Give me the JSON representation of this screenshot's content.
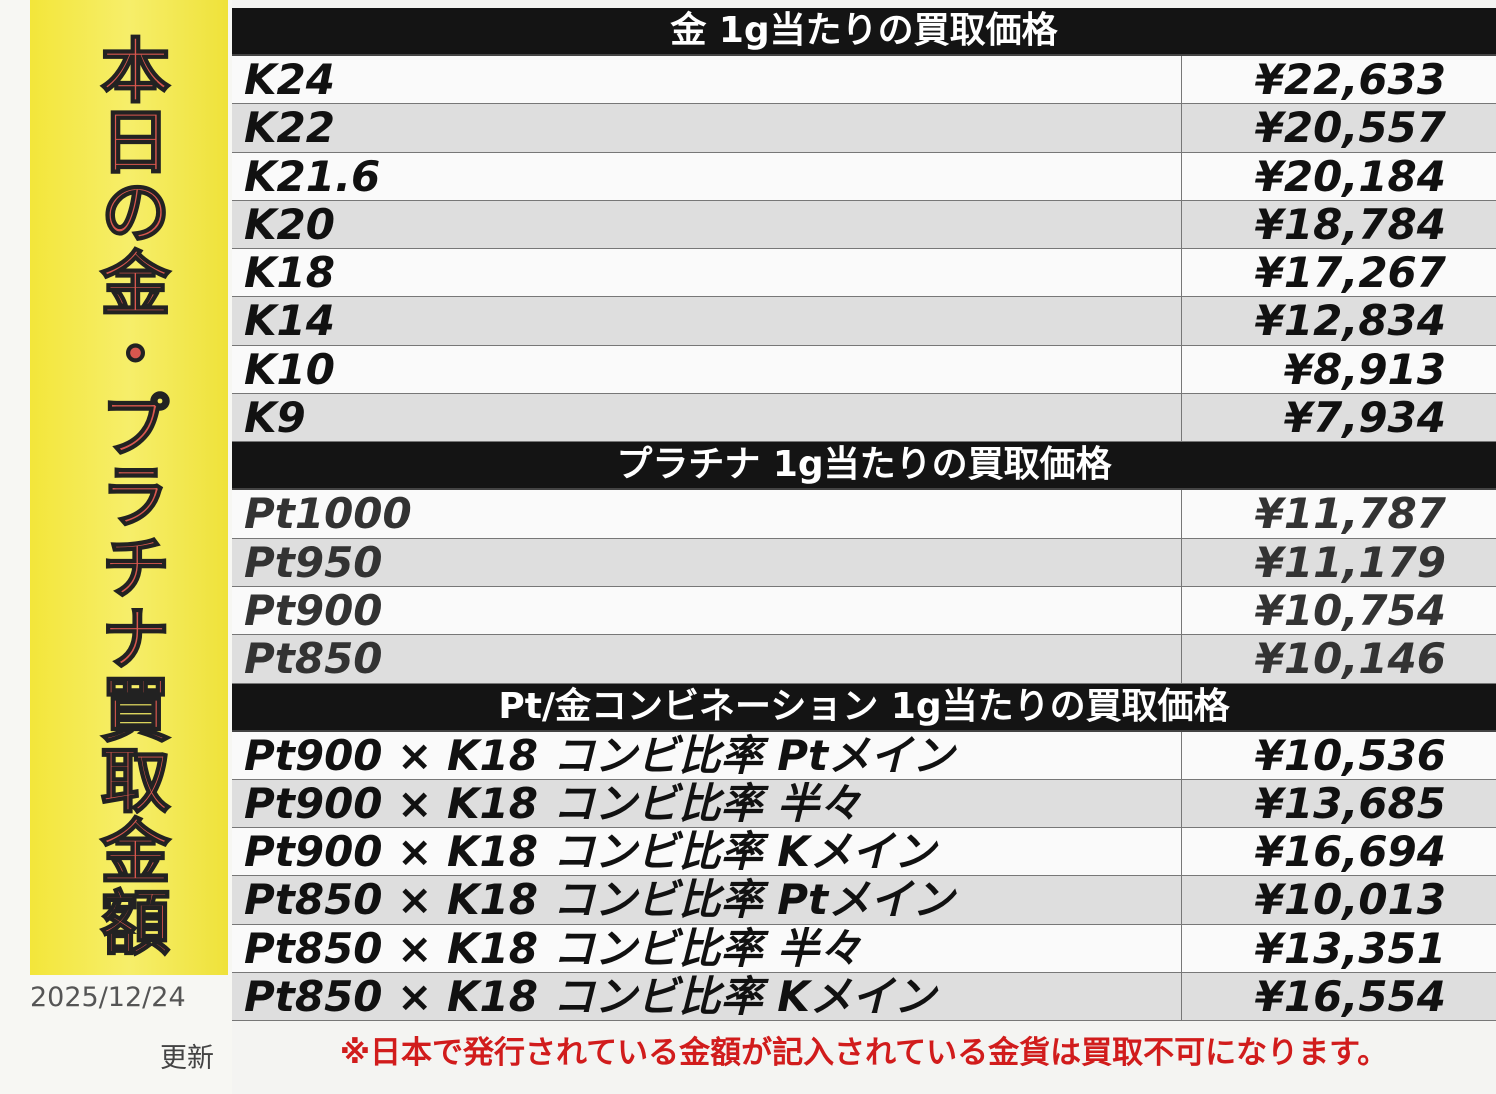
{
  "banner": {
    "title": "本日の金・プラチナ買取金額",
    "date": "2025/12/24",
    "updated": "更新"
  },
  "sections": [
    {
      "title": "金 1g当たりの買取価格",
      "rows": [
        {
          "label": "K24",
          "price": "¥22,633"
        },
        {
          "label": "K22",
          "price": "¥20,557"
        },
        {
          "label": "K21.6",
          "price": "¥20,184"
        },
        {
          "label": "K20",
          "price": "¥18,784"
        },
        {
          "label": "K18",
          "price": "¥17,267"
        },
        {
          "label": "K14",
          "price": "¥12,834"
        },
        {
          "label": "K10",
          "price": "¥8,913"
        },
        {
          "label": "K9",
          "price": "¥7,934"
        }
      ]
    },
    {
      "title": "プラチナ 1g当たりの買取価格",
      "rows": [
        {
          "label": "Pt1000",
          "price": "¥11,787"
        },
        {
          "label": "Pt950",
          "price": "¥11,179"
        },
        {
          "label": "Pt900",
          "price": "¥10,754"
        },
        {
          "label": "Pt850",
          "price": "¥10,146"
        }
      ]
    },
    {
      "title": "Pt/金コンビネーション 1g当たりの買取価格",
      "rows": [
        {
          "label": "Pt900 × K18 コンビ比率 Ptメイン",
          "price": "¥10,536"
        },
        {
          "label": "Pt900 × K18 コンビ比率 半々",
          "price": "¥13,685"
        },
        {
          "label": "Pt900 × K18 コンビ比率 Kメイン",
          "price": "¥16,694"
        },
        {
          "label": "Pt850 × K18 コンビ比率 Ptメイン",
          "price": "¥10,013"
        },
        {
          "label": "Pt850 × K18 コンビ比率 半々",
          "price": "¥13,351"
        },
        {
          "label": "Pt850 × K18 コンビ比率 Kメイン",
          "price": "¥16,554"
        }
      ]
    }
  ],
  "note": "※日本で発行されている金額が記入されている金貨は買取不可になります。"
}
